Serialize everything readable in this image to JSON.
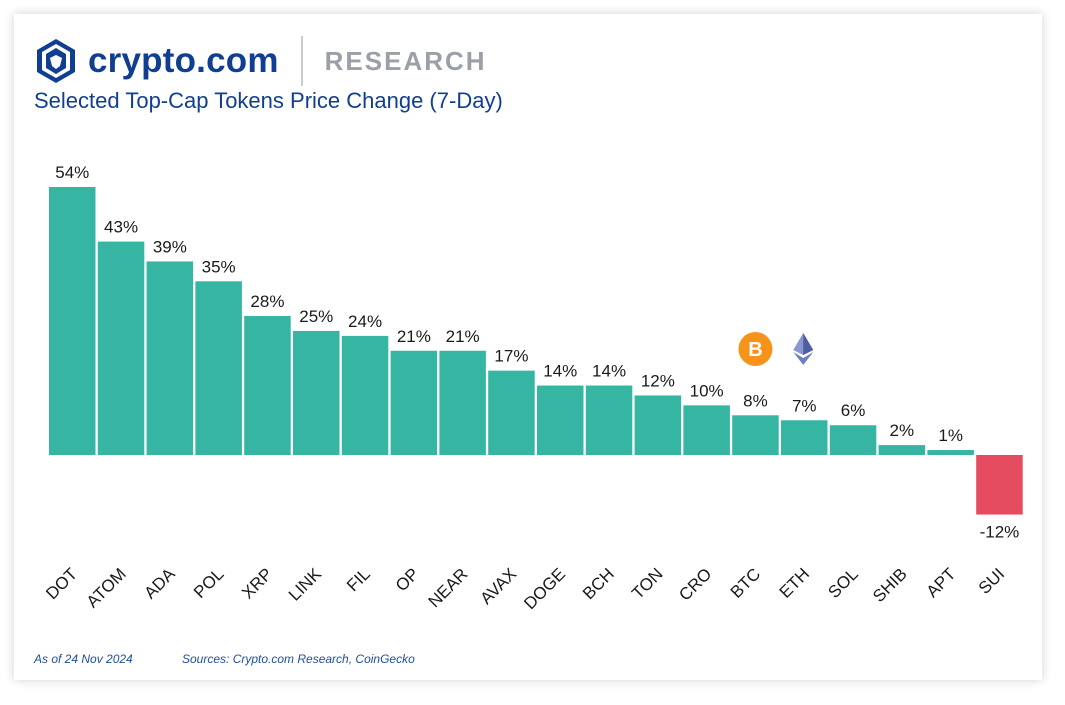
{
  "brand": {
    "name": "crypto.com",
    "section": "RESEARCH"
  },
  "colors": {
    "brand_blue": "#103f91",
    "positive": "#36b5a2",
    "negative": "#e54b5f",
    "bitcoin": "#f7931a",
    "ethereum": "#6e7fc4"
  },
  "chart_data": {
    "type": "bar",
    "title": "Selected Top-Cap Tokens Price Change (7-Day)",
    "categories": [
      "DOT",
      "ATOM",
      "ADA",
      "POL",
      "XRP",
      "LINK",
      "FIL",
      "OP",
      "NEAR",
      "AVAX",
      "DOGE",
      "BCH",
      "TON",
      "CRO",
      "BTC",
      "ETH",
      "SOL",
      "SHIB",
      "APT",
      "SUI"
    ],
    "values": [
      54,
      43,
      39,
      35,
      28,
      25,
      24,
      21,
      21,
      17,
      14,
      14,
      12,
      10,
      8,
      7,
      6,
      2,
      1,
      -12
    ],
    "labels": [
      "54%",
      "43%",
      "39%",
      "35%",
      "28%",
      "25%",
      "24%",
      "21%",
      "21%",
      "17%",
      "14%",
      "14%",
      "12%",
      "10%",
      "8%",
      "7%",
      "6%",
      "2%",
      "1%",
      "-12%"
    ],
    "icons": {
      "BTC": "bitcoin-icon",
      "ETH": "ethereum-icon"
    },
    "xlabel": "",
    "ylabel": "",
    "grid": false,
    "legend": "none"
  },
  "footer": {
    "date": "As of 24 Nov 2024",
    "sources": "Sources: Crypto.com Research, CoinGecko"
  }
}
